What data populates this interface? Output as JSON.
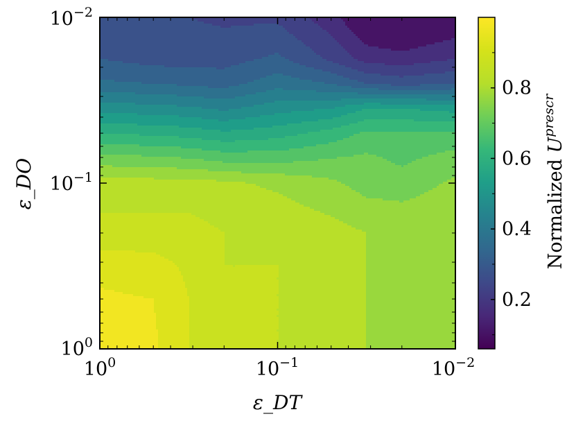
{
  "chart_data": {
    "type": "heatmap",
    "subtype": "filled-contour",
    "x_scale": "log-reversed",
    "y_scale": "log-reversed",
    "xlabel": "ε_DT",
    "ylabel": "ε_DO",
    "xlim": [
      1,
      0.01
    ],
    "ylim": [
      1,
      0.01
    ],
    "x_ticks": [
      {
        "value": 1,
        "base": "10",
        "exp": "0"
      },
      {
        "value": 0.1,
        "base": "10",
        "exp": "−1"
      },
      {
        "value": 0.01,
        "base": "10",
        "exp": "−2"
      }
    ],
    "y_ticks": [
      {
        "value": 1,
        "base": "10",
        "exp": "0"
      },
      {
        "value": 0.1,
        "base": "10",
        "exp": "−1"
      },
      {
        "value": 0.01,
        "base": "10",
        "exp": "−2"
      }
    ],
    "colormap": "viridis",
    "colorbar": {
      "label_text": "Normalized ",
      "label_var": "U",
      "label_sup": "prescr",
      "range": [
        0.06,
        1.0
      ],
      "ticks": [
        "0.2",
        "0.4",
        "0.6",
        "0.8"
      ]
    },
    "grid": false,
    "levels": [
      0.15,
      0.2,
      0.25,
      0.3,
      0.35,
      0.4,
      0.45,
      0.5,
      0.55,
      0.6,
      0.65,
      0.7,
      0.75,
      0.8,
      0.85,
      0.9,
      0.95
    ],
    "x_log_values": [
      0,
      -0.3,
      -0.5,
      -0.7,
      -1.0,
      -1.3,
      -1.5,
      -1.7,
      -2.0
    ],
    "y_log_values": [
      0,
      -0.3,
      -0.5,
      -0.7,
      -1.0,
      -1.15,
      -1.3,
      -1.45,
      -1.6,
      -1.75,
      -2.0
    ],
    "z_rows": [
      [
        0.97,
        0.96,
        0.9,
        0.86,
        0.85,
        0.84,
        0.8,
        0.78,
        0.79
      ],
      [
        0.96,
        0.95,
        0.9,
        0.86,
        0.85,
        0.84,
        0.8,
        0.78,
        0.79
      ],
      [
        0.93,
        0.92,
        0.89,
        0.85,
        0.85,
        0.83,
        0.8,
        0.79,
        0.8
      ],
      [
        0.87,
        0.87,
        0.87,
        0.85,
        0.84,
        0.82,
        0.8,
        0.8,
        0.8
      ],
      [
        0.82,
        0.82,
        0.82,
        0.81,
        0.79,
        0.76,
        0.73,
        0.72,
        0.76
      ],
      [
        0.72,
        0.71,
        0.7,
        0.68,
        0.68,
        0.7,
        0.71,
        0.69,
        0.72
      ],
      [
        0.6,
        0.59,
        0.58,
        0.56,
        0.58,
        0.62,
        0.66,
        0.66,
        0.66
      ],
      [
        0.48,
        0.47,
        0.46,
        0.44,
        0.48,
        0.5,
        0.55,
        0.55,
        0.53
      ],
      [
        0.36,
        0.35,
        0.34,
        0.33,
        0.38,
        0.35,
        0.3,
        0.28,
        0.3
      ],
      [
        0.3,
        0.28,
        0.28,
        0.28,
        0.31,
        0.24,
        0.18,
        0.17,
        0.2
      ],
      [
        0.28,
        0.26,
        0.25,
        0.24,
        0.24,
        0.17,
        0.09,
        0.06,
        0.1
      ]
    ]
  }
}
